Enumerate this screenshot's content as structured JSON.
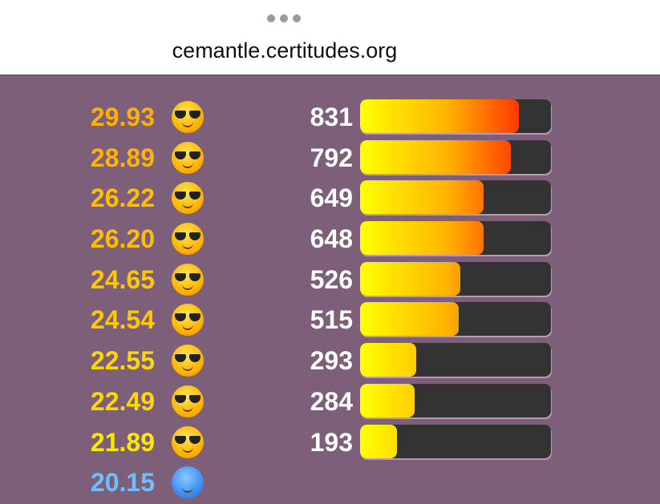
{
  "browser": {
    "url": "cemantle.certitudes.org"
  },
  "colors": {
    "background": "#7e5f7a",
    "warm_score": "#ffb000",
    "mild_score": "#ffe000",
    "cold_score": "#6cc0ff",
    "bar_track": "#333333"
  },
  "rows": [
    {
      "similarity": "29.93",
      "emoji": "smiling-face-with-sunglasses",
      "rank": "831",
      "progress": 0.831,
      "color": "#ffb000"
    },
    {
      "similarity": "28.89",
      "emoji": "smiling-face-with-sunglasses",
      "rank": "792",
      "progress": 0.792,
      "color": "#ffb400"
    },
    {
      "similarity": "26.22",
      "emoji": "smiling-face-with-sunglasses",
      "rank": "649",
      "progress": 0.649,
      "color": "#ffbe00"
    },
    {
      "similarity": "26.20",
      "emoji": "smiling-face-with-sunglasses",
      "rank": "648",
      "progress": 0.648,
      "color": "#ffbe00"
    },
    {
      "similarity": "24.65",
      "emoji": "smiling-face-with-sunglasses",
      "rank": "526",
      "progress": 0.526,
      "color": "#ffc800"
    },
    {
      "similarity": "24.54",
      "emoji": "smiling-face-with-sunglasses",
      "rank": "515",
      "progress": 0.515,
      "color": "#ffc800"
    },
    {
      "similarity": "22.55",
      "emoji": "smiling-face-with-sunglasses",
      "rank": "293",
      "progress": 0.293,
      "color": "#ffd800"
    },
    {
      "similarity": "22.49",
      "emoji": "smiling-face-with-sunglasses",
      "rank": "284",
      "progress": 0.284,
      "color": "#ffd800"
    },
    {
      "similarity": "21.89",
      "emoji": "smiling-face-with-sunglasses",
      "rank": "193",
      "progress": 0.193,
      "color": "#ffe800"
    },
    {
      "similarity": "20.15",
      "emoji": "cold-face",
      "rank": "",
      "progress": null,
      "color": "#6cc0ff"
    }
  ]
}
